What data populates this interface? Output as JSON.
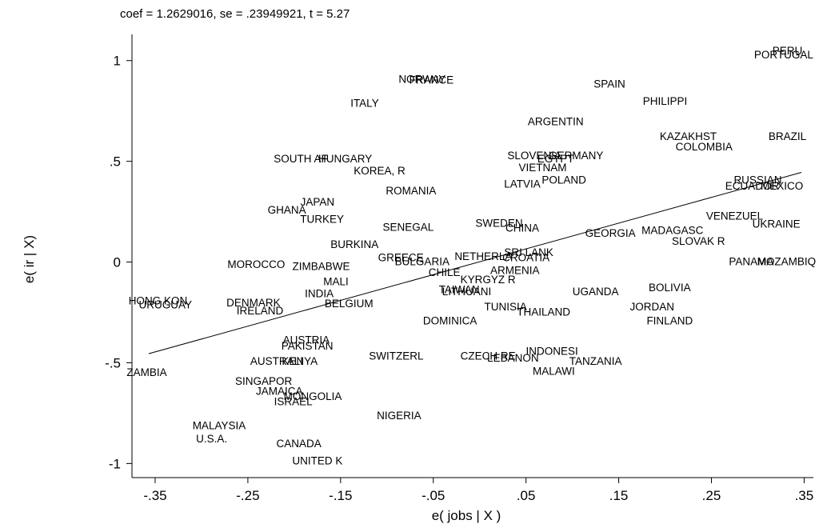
{
  "chart_data": {
    "type": "scatter",
    "title": "coef = 1.2629016, se = .23949921, t = 5.27",
    "xlabel": "e( jobs | X )",
    "ylabel": "e( ir | X)",
    "xlim": [
      -0.375,
      0.36
    ],
    "ylim": [
      -1.07,
      1.13
    ],
    "xticks": [
      -0.35,
      -0.25,
      -0.15,
      -0.05,
      0.05,
      0.15,
      0.25,
      0.35
    ],
    "xtick_labels": [
      "-.35",
      "-.25",
      "-.15",
      "-.05",
      ".05",
      ".15",
      ".25",
      ".35"
    ],
    "yticks": [
      -1,
      -0.5,
      0,
      0.5,
      1
    ],
    "ytick_labels": [
      "-1",
      "-.5",
      "0",
      ".5",
      "1"
    ],
    "grid": false,
    "marker": "country-name labels",
    "fit_line": {
      "x": [
        -0.357,
        0.347
      ],
      "y": [
        -0.455,
        0.445
      ]
    },
    "points": [
      {
        "label": "PERU",
        "x": 0.332,
        "y": 1.05
      },
      {
        "label": "PORTUGAL",
        "x": 0.328,
        "y": 1.03
      },
      {
        "label": "NORWAY",
        "x": -0.062,
        "y": 0.91
      },
      {
        "label": "FRANCE",
        "x": -0.052,
        "y": 0.905
      },
      {
        "label": "SPAIN",
        "x": 0.14,
        "y": 0.885
      },
      {
        "label": "ITALY",
        "x": -0.124,
        "y": 0.79
      },
      {
        "label": "PHILIPPI",
        "x": 0.2,
        "y": 0.8
      },
      {
        "label": "ARGENTIN",
        "x": 0.082,
        "y": 0.7
      },
      {
        "label": "KAZAKHST",
        "x": 0.225,
        "y": 0.625
      },
      {
        "label": "BRAZIL",
        "x": 0.332,
        "y": 0.625
      },
      {
        "label": "COLOMBIA",
        "x": 0.242,
        "y": 0.575
      },
      {
        "label": "SLOVENIA",
        "x": 0.059,
        "y": 0.53
      },
      {
        "label": "EGYPT",
        "x": 0.082,
        "y": 0.515
      },
      {
        "label": "GERMANY",
        "x": 0.104,
        "y": 0.53
      },
      {
        "label": "SOUTH AF",
        "x": -0.193,
        "y": 0.515
      },
      {
        "label": "HUNGARY",
        "x": -0.145,
        "y": 0.515
      },
      {
        "label": "VIETNAM",
        "x": 0.068,
        "y": 0.47
      },
      {
        "label": "KOREA, R",
        "x": -0.108,
        "y": 0.455
      },
      {
        "label": "LATVIA",
        "x": 0.046,
        "y": 0.39
      },
      {
        "label": "POLAND",
        "x": 0.091,
        "y": 0.41
      },
      {
        "label": "RUSSIAN",
        "x": 0.3,
        "y": 0.41
      },
      {
        "label": "ECUADOR",
        "x": 0.294,
        "y": 0.38
      },
      {
        "label": "MEXICO",
        "x": 0.326,
        "y": 0.38
      },
      {
        "label": "ROMANIA",
        "x": -0.074,
        "y": 0.355
      },
      {
        "label": "JAPAN",
        "x": -0.175,
        "y": 0.3
      },
      {
        "label": "GHANA",
        "x": -0.208,
        "y": 0.26
      },
      {
        "label": "TURKEY",
        "x": -0.17,
        "y": 0.215
      },
      {
        "label": "VENEZUEL",
        "x": 0.275,
        "y": 0.23
      },
      {
        "label": "UKRAINE",
        "x": 0.32,
        "y": 0.19
      },
      {
        "label": "SENEGAL",
        "x": -0.077,
        "y": 0.175
      },
      {
        "label": "SWEDEN",
        "x": 0.021,
        "y": 0.195
      },
      {
        "label": "CHINA",
        "x": 0.046,
        "y": 0.17
      },
      {
        "label": "MADAGASC",
        "x": 0.208,
        "y": 0.16
      },
      {
        "label": "GEORGIA",
        "x": 0.141,
        "y": 0.145
      },
      {
        "label": "SLOVAK R",
        "x": 0.236,
        "y": 0.105
      },
      {
        "label": "BURKINA",
        "x": -0.135,
        "y": 0.09
      },
      {
        "label": "GREECE",
        "x": -0.085,
        "y": 0.025
      },
      {
        "label": "BULGARIA",
        "x": -0.062,
        "y": 0.005
      },
      {
        "label": "NETHERLA",
        "x": 0.004,
        "y": 0.03
      },
      {
        "label": "SRI LANK",
        "x": 0.053,
        "y": 0.05
      },
      {
        "label": "CROATIA",
        "x": 0.05,
        "y": 0.025
      },
      {
        "label": "PANAMA",
        "x": 0.293,
        "y": 0.005
      },
      {
        "label": "MOZAMBIQ",
        "x": 0.331,
        "y": 0.005
      },
      {
        "label": "MOROCCO",
        "x": -0.241,
        "y": -0.01
      },
      {
        "label": "ZIMBABWE",
        "x": -0.171,
        "y": -0.02
      },
      {
        "label": "ARMENIA",
        "x": 0.038,
        "y": -0.04
      },
      {
        "label": "CHILE",
        "x": -0.038,
        "y": -0.05
      },
      {
        "label": "KYRGYZ R",
        "x": 0.009,
        "y": -0.085
      },
      {
        "label": "MALI",
        "x": -0.155,
        "y": -0.095
      },
      {
        "label": "TAIWAN",
        "x": -0.022,
        "y": -0.135
      },
      {
        "label": "LITHUANI",
        "x": -0.014,
        "y": -0.145
      },
      {
        "label": "BOLIVIA",
        "x": 0.205,
        "y": -0.125
      },
      {
        "label": "UGANDA",
        "x": 0.125,
        "y": -0.145
      },
      {
        "label": "INDIA",
        "x": -0.173,
        "y": -0.155
      },
      {
        "label": "HONG KON",
        "x": -0.347,
        "y": -0.19
      },
      {
        "label": "URUGUAY",
        "x": -0.339,
        "y": -0.21
      },
      {
        "label": "DENMARK",
        "x": -0.244,
        "y": -0.2
      },
      {
        "label": "BELGIUM",
        "x": -0.141,
        "y": -0.205
      },
      {
        "label": "IRELAND",
        "x": -0.237,
        "y": -0.24
      },
      {
        "label": "TUNISIA",
        "x": 0.028,
        "y": -0.22
      },
      {
        "label": "JORDAN",
        "x": 0.186,
        "y": -0.22
      },
      {
        "label": "THAILAND",
        "x": 0.069,
        "y": -0.245
      },
      {
        "label": "DOMINICA",
        "x": -0.032,
        "y": -0.29
      },
      {
        "label": "FINLAND",
        "x": 0.205,
        "y": -0.29
      },
      {
        "label": "AUSTRIA",
        "x": -0.187,
        "y": -0.385
      },
      {
        "label": "PAKISTAN",
        "x": -0.186,
        "y": -0.415
      },
      {
        "label": "INDONESI",
        "x": 0.078,
        "y": -0.44
      },
      {
        "label": "SWITZERL",
        "x": -0.09,
        "y": -0.465
      },
      {
        "label": "CZECH RE",
        "x": 0.009,
        "y": -0.465
      },
      {
        "label": "LEBANON",
        "x": 0.036,
        "y": -0.475
      },
      {
        "label": "AUSTRALI",
        "x": -0.219,
        "y": -0.49
      },
      {
        "label": "KENYA",
        "x": -0.194,
        "y": -0.49
      },
      {
        "label": "TANZANIA",
        "x": 0.125,
        "y": -0.49
      },
      {
        "label": "MALAWI",
        "x": 0.08,
        "y": -0.54
      },
      {
        "label": "ZAMBIA",
        "x": -0.359,
        "y": -0.545
      },
      {
        "label": "SINGAPOR",
        "x": -0.233,
        "y": -0.59
      },
      {
        "label": "JAMAICA",
        "x": -0.216,
        "y": -0.64
      },
      {
        "label": "MONGOLIA",
        "x": -0.18,
        "y": -0.665
      },
      {
        "label": "ISRAEL",
        "x": -0.201,
        "y": -0.69
      },
      {
        "label": "NIGERIA",
        "x": -0.087,
        "y": -0.76
      },
      {
        "label": "MALAYSIA",
        "x": -0.281,
        "y": -0.81
      },
      {
        "label": "U.S.A.",
        "x": -0.289,
        "y": -0.875
      },
      {
        "label": "CANADA",
        "x": -0.195,
        "y": -0.9
      },
      {
        "label": "UNITED K",
        "x": -0.175,
        "y": -0.985
      }
    ]
  }
}
